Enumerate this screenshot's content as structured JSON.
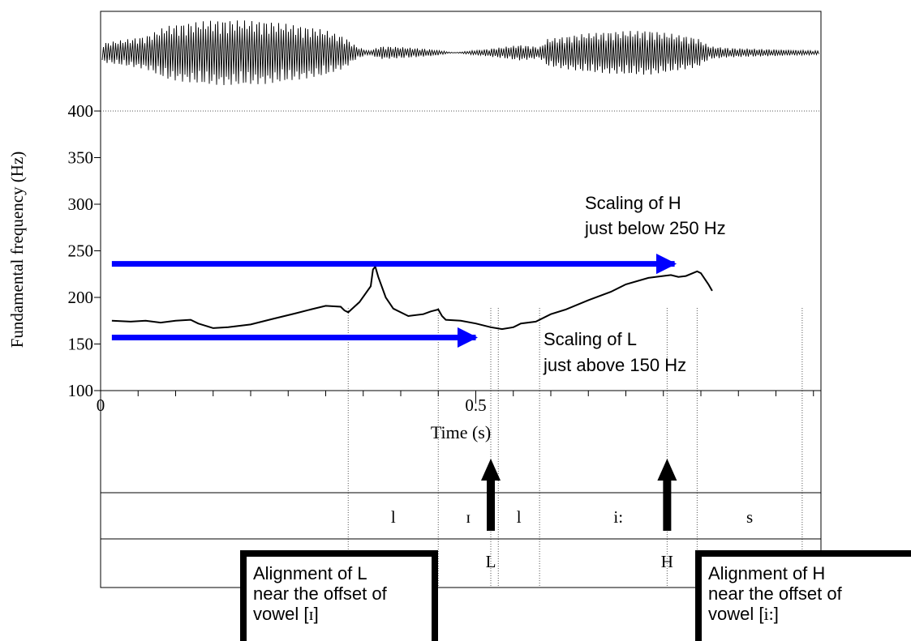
{
  "chart_data": {
    "type": "line",
    "xlabel": "Time (s)",
    "ylabel": "Fundamental frequency (Hz)",
    "xlim": [
      0,
      0.96
    ],
    "ylim": [
      100,
      400
    ],
    "y_ticks": [
      100,
      150,
      200,
      250,
      300,
      350,
      400
    ],
    "x_tick_labels": [
      {
        "value": 0,
        "label": "0"
      },
      {
        "value": 0.5,
        "label": "0.5"
      }
    ],
    "grid": "horizontal dotted at 100 and 400",
    "series": [
      {
        "x": [
          0.015,
          0.04,
          0.06,
          0.08,
          0.1,
          0.12,
          0.13,
          0.15,
          0.17,
          0.2,
          0.23,
          0.26,
          0.28,
          0.3,
          0.32,
          0.325,
          0.33,
          0.345,
          0.36,
          0.363,
          0.366,
          0.37,
          0.38,
          0.39,
          0.41,
          0.43,
          0.44,
          0.45,
          0.455,
          0.46,
          0.48,
          0.5,
          0.52,
          0.535,
          0.55,
          0.56,
          0.58,
          0.6,
          0.62,
          0.65,
          0.68,
          0.7,
          0.73,
          0.76,
          0.77,
          0.78,
          0.795,
          0.8,
          0.81,
          0.815
        ],
        "y": [
          175,
          174,
          175,
          173,
          175,
          176,
          172,
          167,
          168,
          171,
          177,
          183,
          187,
          191,
          190,
          186,
          184,
          195,
          212,
          230,
          233,
          222,
          200,
          188,
          180,
          182,
          185,
          187,
          180,
          176,
          175,
          172,
          168,
          166,
          168,
          172,
          174,
          182,
          187,
          197,
          206,
          214,
          221,
          224,
          222,
          223,
          228,
          226,
          214,
          207
        ]
      }
    ],
    "annotations": [
      {
        "text": [
          "Scaling of H",
          "just below 250 Hz"
        ]
      },
      {
        "text": [
          "Scaling of L",
          "just above 150 Hz"
        ]
      }
    ],
    "arrows": [
      {
        "y": 236,
        "x_from": 0.015,
        "x_to": 0.765,
        "color": "#0000ff"
      },
      {
        "y": 157,
        "x_from": 0.015,
        "x_to": 0.5,
        "color": "#0000ff"
      }
    ],
    "segment_boundaries": [
      0.33,
      0.45,
      0.53,
      0.585,
      0.795,
      0.935
    ],
    "segments": [
      {
        "label": "l",
        "from": 0.33,
        "to": 0.45
      },
      {
        "label": "ɪ",
        "from": 0.45,
        "to": 0.53
      },
      {
        "label": "l",
        "from": 0.53,
        "to": 0.585
      },
      {
        "label": "i:",
        "from": 0.585,
        "to": 0.795
      },
      {
        "label": "s",
        "from": 0.795,
        "to": 0.935
      }
    ],
    "tones": [
      {
        "label": "L",
        "x": 0.52
      },
      {
        "label": "H",
        "x": 0.755
      }
    ]
  },
  "callouts": {
    "left": {
      "line1": "Alignment of L",
      "line2": "near the offset of",
      "line3_prefix": "vowel [",
      "line3_ipa": "ɪ",
      "line3_suffix": "]"
    },
    "right": {
      "line1": "Alignment of H",
      "line2": "near the offset of",
      "line3_prefix": "vowel [",
      "line3_ipa": "i:",
      "line3_suffix": "]"
    }
  },
  "colors": {
    "arrow_blue": "#0000ff",
    "line": "#000000",
    "grid": "#555555"
  }
}
